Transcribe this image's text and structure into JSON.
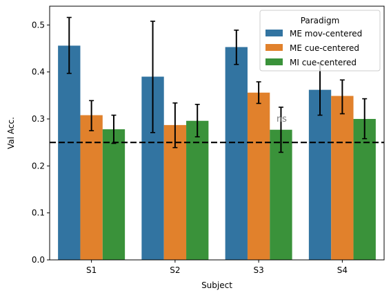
{
  "chart_data": {
    "type": "bar",
    "xlabel": "Subject",
    "ylabel": "Val Acc.",
    "categories": [
      "S1",
      "S2",
      "S3",
      "S4"
    ],
    "ylim": [
      0,
      0.54
    ],
    "yticks": [
      0.0,
      0.1,
      0.2,
      0.3,
      0.4,
      0.5
    ],
    "ytick_labels": [
      "0.0",
      "0.1",
      "0.2",
      "0.3",
      "0.4",
      "0.5"
    ],
    "grid": false,
    "legend": {
      "title": "Paradigm",
      "placement": "top-right"
    },
    "series": [
      {
        "name": "ME mov-centered",
        "color": "#3274a1",
        "values": [
          0.456,
          0.39,
          0.453,
          0.362
        ],
        "err_low": [
          0.397,
          0.271,
          0.416,
          0.308
        ],
        "err_high": [
          0.516,
          0.508,
          0.489,
          0.417
        ]
      },
      {
        "name": "ME cue-centered",
        "color": "#e1812c",
        "values": [
          0.308,
          0.287,
          0.356,
          0.349
        ],
        "err_low": [
          0.275,
          0.239,
          0.333,
          0.311
        ],
        "err_high": [
          0.339,
          0.334,
          0.379,
          0.383
        ]
      },
      {
        "name": "MI cue-centered",
        "color": "#3a923a",
        "values": [
          0.278,
          0.296,
          0.277,
          0.3
        ],
        "err_low": [
          0.248,
          0.262,
          0.229,
          0.258
        ],
        "err_high": [
          0.308,
          0.331,
          0.325,
          0.343
        ]
      }
    ],
    "reference_line": {
      "y": 0.25,
      "style": "dashed",
      "color": "#000000"
    },
    "annotations": [
      {
        "text": "ns",
        "category": "S3",
        "series": "MI cue-centered",
        "y": 0.3
      }
    ]
  }
}
